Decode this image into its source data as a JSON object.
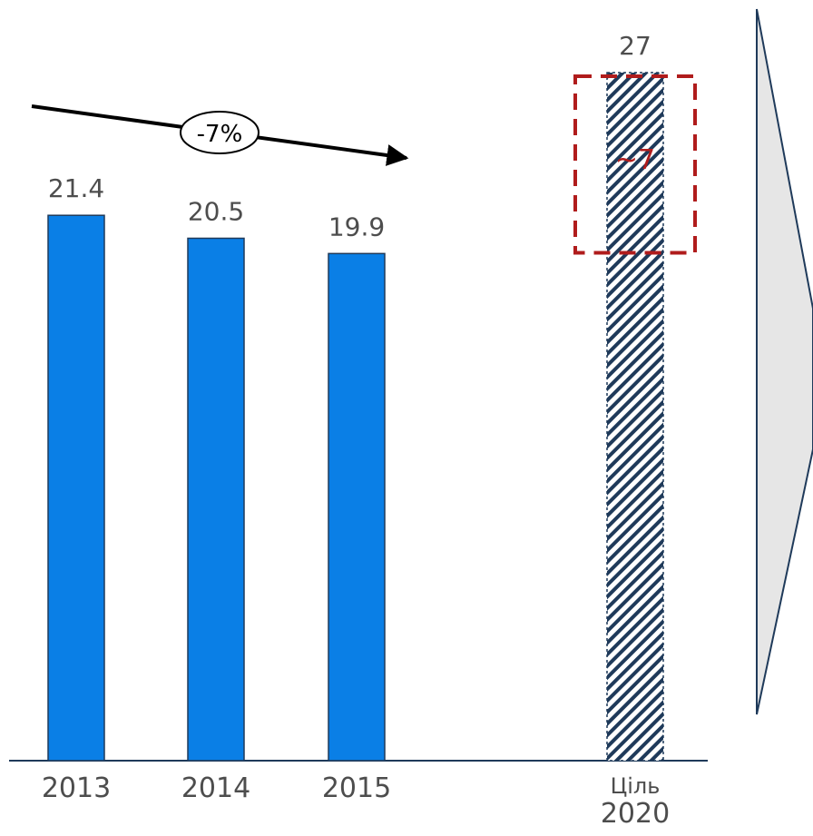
{
  "chart_data": {
    "type": "bar",
    "categories": [
      "2013",
      "2014",
      "2015",
      "Ціль 2020"
    ],
    "category_labels": [
      [
        "2013"
      ],
      [
        "2014"
      ],
      [
        "2015"
      ],
      [
        "Ціль",
        "2020"
      ]
    ],
    "values": [
      21.4,
      20.5,
      19.9,
      27
    ],
    "value_labels": [
      "21.4",
      "20.5",
      "19.9",
      "27"
    ],
    "bar_styles": [
      "solid",
      "solid",
      "solid",
      "hatched"
    ],
    "ylim": [
      0,
      27
    ],
    "grid": false,
    "legend": "none",
    "annotations": {
      "trend": {
        "label": "-7%",
        "from_category": "2013",
        "to_category": "2015",
        "direction": "decreasing"
      },
      "highlight": {
        "label": "~7",
        "category": "Ціль 2020",
        "range": [
          20,
          27
        ],
        "style": "dashed-box"
      }
    }
  },
  "colors": {
    "bar_fill": "#0A7FE6",
    "bar_edge": "#1F3A5A",
    "hatch_dark": "#1F3A5A",
    "hatch_light": "#ffffff",
    "axis": "#1F3A5A",
    "value_label": "#4D4D4D",
    "tick_label": "#4D4D4D",
    "highlight": "#B01C1C",
    "trend_arrow": "#000000",
    "chevron_fill": "#E6E6E6",
    "chevron_edge": "#1F3A5A"
  }
}
